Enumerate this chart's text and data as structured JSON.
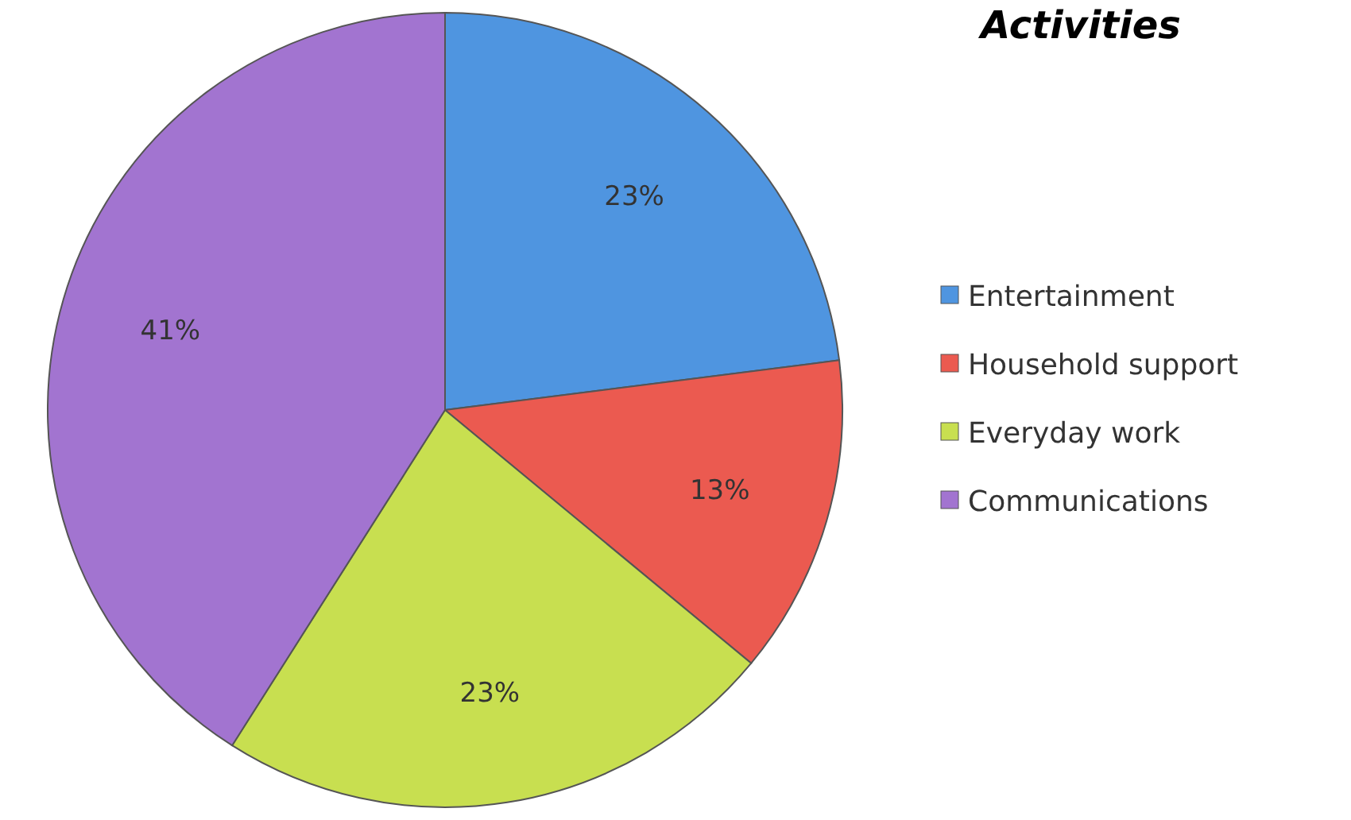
{
  "chart_data": {
    "type": "pie",
    "title": "Activities",
    "categories": [
      "Entertainment",
      "Household support",
      "Everyday work",
      "Communications"
    ],
    "values": [
      23,
      13,
      23,
      41
    ],
    "colors": [
      "#4f95e0",
      "#eb5a50",
      "#c8df50",
      "#a274d0"
    ],
    "value_labels": [
      "23%",
      "13%",
      "23%",
      "41%"
    ],
    "legend": "right"
  }
}
